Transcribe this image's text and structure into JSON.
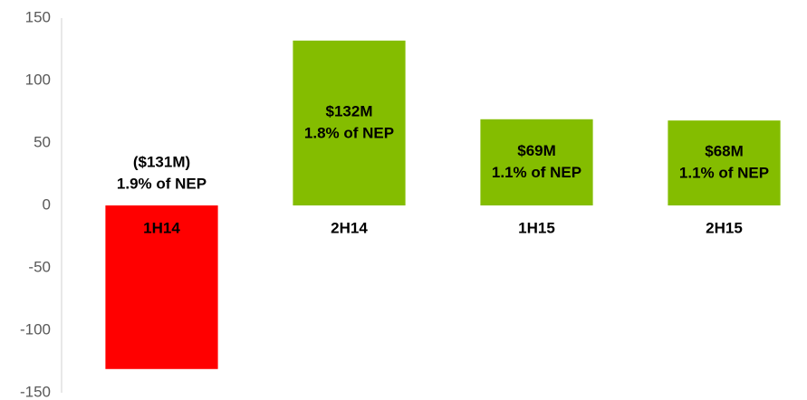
{
  "chart_data": {
    "type": "bar",
    "categories": [
      "1H14",
      "2H14",
      "1H15",
      "2H15"
    ],
    "values": [
      -131,
      132,
      69,
      68
    ],
    "value_labels": [
      "($131M)",
      "$132M",
      "$69M",
      "$68M"
    ],
    "annotations": [
      "1.9% of NEP",
      "1.8% of NEP",
      "1.1% of NEP",
      "1.1% of NEP"
    ],
    "colors": [
      "#ff0000",
      "#84bd00",
      "#84bd00",
      "#84bd00"
    ],
    "ylim": [
      -150,
      150
    ],
    "yticks": [
      -150,
      -100,
      -50,
      0,
      50,
      100,
      150
    ],
    "grid": false
  }
}
